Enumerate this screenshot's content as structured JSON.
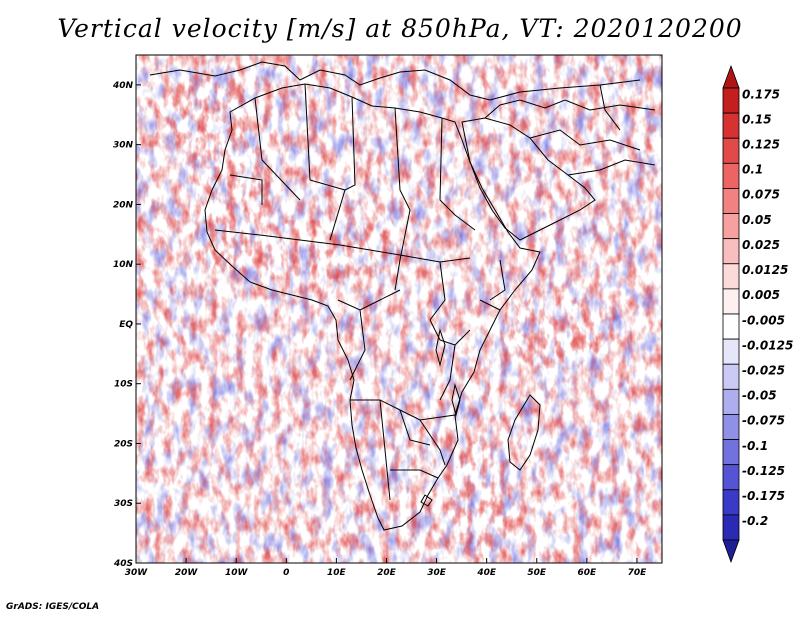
{
  "title": "Vertical velocity [m/s] at 850hPa, VT: 2020120200",
  "credit": "GrADS: IGES/COLA",
  "map": {
    "region": "Africa",
    "field": "vertical velocity",
    "level": "850hPa",
    "lon_range": [
      -30,
      75
    ],
    "lat_range": [
      -40,
      45
    ],
    "lon_ticks": [
      {
        "value": -30,
        "label": "30W"
      },
      {
        "value": -20,
        "label": "20W"
      },
      {
        "value": -10,
        "label": "10W"
      },
      {
        "value": 0,
        "label": "0"
      },
      {
        "value": 10,
        "label": "10E"
      },
      {
        "value": 20,
        "label": "20E"
      },
      {
        "value": 30,
        "label": "30E"
      },
      {
        "value": 40,
        "label": "40E"
      },
      {
        "value": 50,
        "label": "50E"
      },
      {
        "value": 60,
        "label": "60E"
      },
      {
        "value": 70,
        "label": "70E"
      }
    ],
    "lat_ticks": [
      {
        "value": 40,
        "label": "40N"
      },
      {
        "value": 30,
        "label": "30N"
      },
      {
        "value": 20,
        "label": "20N"
      },
      {
        "value": 10,
        "label": "10N"
      },
      {
        "value": 0,
        "label": "EQ"
      },
      {
        "value": -10,
        "label": "10S"
      },
      {
        "value": -20,
        "label": "20S"
      },
      {
        "value": -30,
        "label": "30S"
      },
      {
        "value": -40,
        "label": "40S"
      }
    ]
  },
  "colorbar": {
    "levels": [
      {
        "label": "0.175",
        "color": "#c41f1f"
      },
      {
        "label": "0.15",
        "color": "#d63232"
      },
      {
        "label": "0.125",
        "color": "#e24a4a"
      },
      {
        "label": "0.1",
        "color": "#ec6464"
      },
      {
        "label": "0.075",
        "color": "#f28282"
      },
      {
        "label": "0.05",
        "color": "#f6a0a0"
      },
      {
        "label": "0.025",
        "color": "#f9bebe"
      },
      {
        "label": "0.0125",
        "color": "#fcdada"
      },
      {
        "label": "0.005",
        "color": "#fef0f0"
      },
      {
        "label": "-0.005",
        "color": "#ffffff"
      },
      {
        "label": "-0.0125",
        "color": "#e6e6fa"
      },
      {
        "label": "-0.025",
        "color": "#cacaf4"
      },
      {
        "label": "-0.05",
        "color": "#aeaeee"
      },
      {
        "label": "-0.075",
        "color": "#9090e6"
      },
      {
        "label": "-0.1",
        "color": "#7272de"
      },
      {
        "label": "-0.125",
        "color": "#5454d4"
      },
      {
        "label": "-0.175",
        "color": "#3a3ac8"
      },
      {
        "label": "-0.2",
        "color": "#2a2ab4"
      }
    ],
    "top_arrow_color": "#b01414",
    "bottom_arrow_color": "#1e1e96"
  },
  "colors": {
    "upward": "#e24a4a",
    "downward": "#6a6ae0",
    "border": "#000000"
  }
}
